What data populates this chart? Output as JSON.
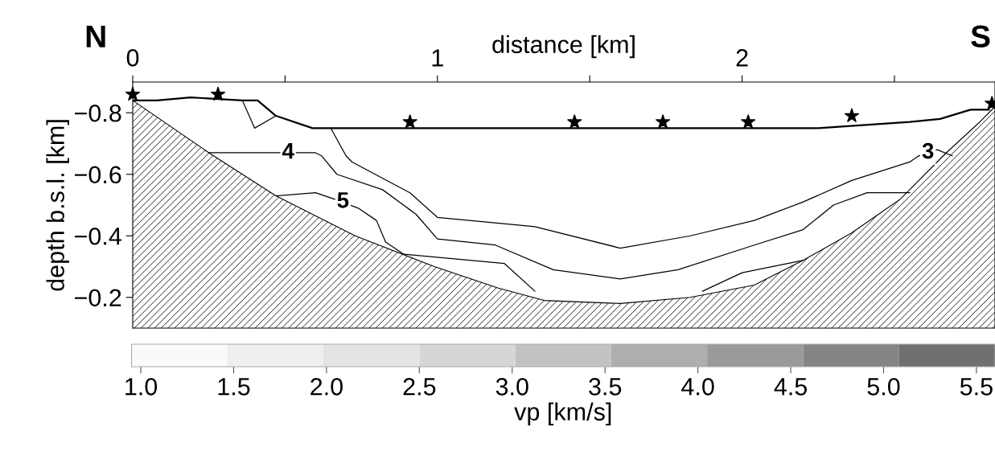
{
  "chart_data": [
    {
      "type": "line",
      "xlabel": "distance [km]",
      "ylabel": "depth b.s.l. [km]",
      "xlim": [
        0,
        2.83
      ],
      "ylim": [
        -0.1,
        -0.9
      ],
      "xticks": [
        0,
        {
          "value": 0.5,
          "label": null
        },
        1,
        {
          "value": 1.5,
          "label": null
        },
        2,
        {
          "value": 2.5,
          "label": null
        }
      ],
      "yticks": [
        {
          "value": -0.8,
          "label": "−0.8"
        },
        {
          "value": -0.6,
          "label": "−0.6"
        },
        {
          "value": -0.4,
          "label": "−0.4"
        },
        {
          "value": -0.2,
          "label": "−0.2"
        }
      ],
      "grid": false,
      "series": [
        {
          "type": "area",
          "color": "#000000",
          "x": [
            0,
            0.25,
            0.47,
            0.73,
            0.99,
            1.2,
            1.35,
            1.6,
            1.83,
            2.04,
            2.2,
            2.36,
            2.52,
            2.67,
            2.78,
            2.83
          ],
          "values": [
            -0.84,
            -0.67,
            -0.53,
            -0.4,
            -0.3,
            -0.23,
            -0.19,
            -0.18,
            -0.2,
            -0.24,
            -0.32,
            -0.41,
            -0.52,
            -0.67,
            -0.77,
            -0.82
          ]
        },
        {
          "type": "line",
          "color": "#000000",
          "x": [
            0,
            0.08,
            0.19,
            0.36,
            0.41,
            0.47,
            0.59,
            2.25,
            2.55,
            2.65,
            2.75,
            2.81
          ],
          "values": [
            -0.84,
            -0.84,
            -0.85,
            -0.84,
            -0.84,
            -0.79,
            -0.75,
            -0.75,
            -0.77,
            -0.78,
            -0.81,
            -0.81
          ]
        },
        {
          "type": "line",
          "color": "#000000",
          "x": [
            0.65,
            0.7,
            0.72,
            0.91,
            1.0,
            1.21,
            1.32,
            1.6,
            1.83,
            2.04,
            2.2,
            2.36,
            2.55,
            2.58,
            2.64,
            2.69
          ],
          "values": [
            -0.75,
            -0.66,
            -0.64,
            -0.54,
            -0.46,
            -0.44,
            -0.43,
            -0.36,
            -0.4,
            -0.45,
            -0.51,
            -0.58,
            -0.64,
            -0.66,
            -0.68,
            -0.66
          ]
        },
        {
          "type": "line",
          "color": "#000000",
          "x": [
            0.25,
            0.6,
            0.62,
            0.67,
            0.82,
            0.93,
            1.0,
            1.19,
            1.38,
            1.6,
            1.79,
            2.04,
            2.2,
            2.3,
            2.41,
            2.55
          ],
          "values": [
            -0.67,
            -0.67,
            -0.66,
            -0.6,
            -0.55,
            -0.47,
            -0.39,
            -0.37,
            -0.29,
            -0.26,
            -0.29,
            -0.37,
            -0.42,
            -0.5,
            -0.54,
            -0.54
          ]
        },
        {
          "type": "line",
          "color": "#000000",
          "x": [
            0.47,
            0.6,
            0.66,
            0.74,
            0.8,
            0.83,
            0.89,
            1.22,
            1.32,
            1.6,
            1.87,
            2.0,
            2.2
          ],
          "values": [
            -0.53,
            -0.54,
            -0.52,
            -0.49,
            -0.45,
            -0.38,
            -0.34,
            -0.31,
            -0.22,
            null,
            -0.22,
            -0.28,
            -0.32
          ]
        },
        {
          "type": "line",
          "color": "#000000",
          "x": [
            0.36,
            0.4,
            0.47
          ],
          "values": [
            -0.84,
            -0.75,
            -0.79
          ]
        },
        {
          "type": "scatter",
          "color": "#000000",
          "marker": "star",
          "x": [
            0,
            0.28,
            0.91,
            1.45,
            1.74,
            2.02,
            2.36,
            2.82
          ],
          "values": [
            -0.86,
            -0.86,
            -0.77,
            -0.77,
            -0.77,
            -0.77,
            -0.79,
            -0.83
          ]
        }
      ],
      "annotations": [
        "N",
        {
          "text": "3",
          "x": 2.61,
          "y": -0.67
        },
        {
          "text": "4",
          "x": 0.51,
          "y": -0.67
        },
        {
          "text": "5",
          "x": 0.69,
          "y": -0.51
        },
        "S"
      ],
      "clabel": "vp [km/s]",
      "clim": [
        0.95,
        5.6
      ],
      "cticks": [
        {
          "value": 1.0,
          "label": "1.0"
        },
        1.5,
        {
          "value": 2.0,
          "label": "2.0"
        },
        2.5,
        {
          "value": 3.0,
          "label": "3.0"
        },
        3.5,
        {
          "value": 4.0,
          "label": "4.0"
        },
        4.5,
        {
          "value": 5.0,
          "label": "5.0"
        },
        5.5
      ]
    }
  ]
}
